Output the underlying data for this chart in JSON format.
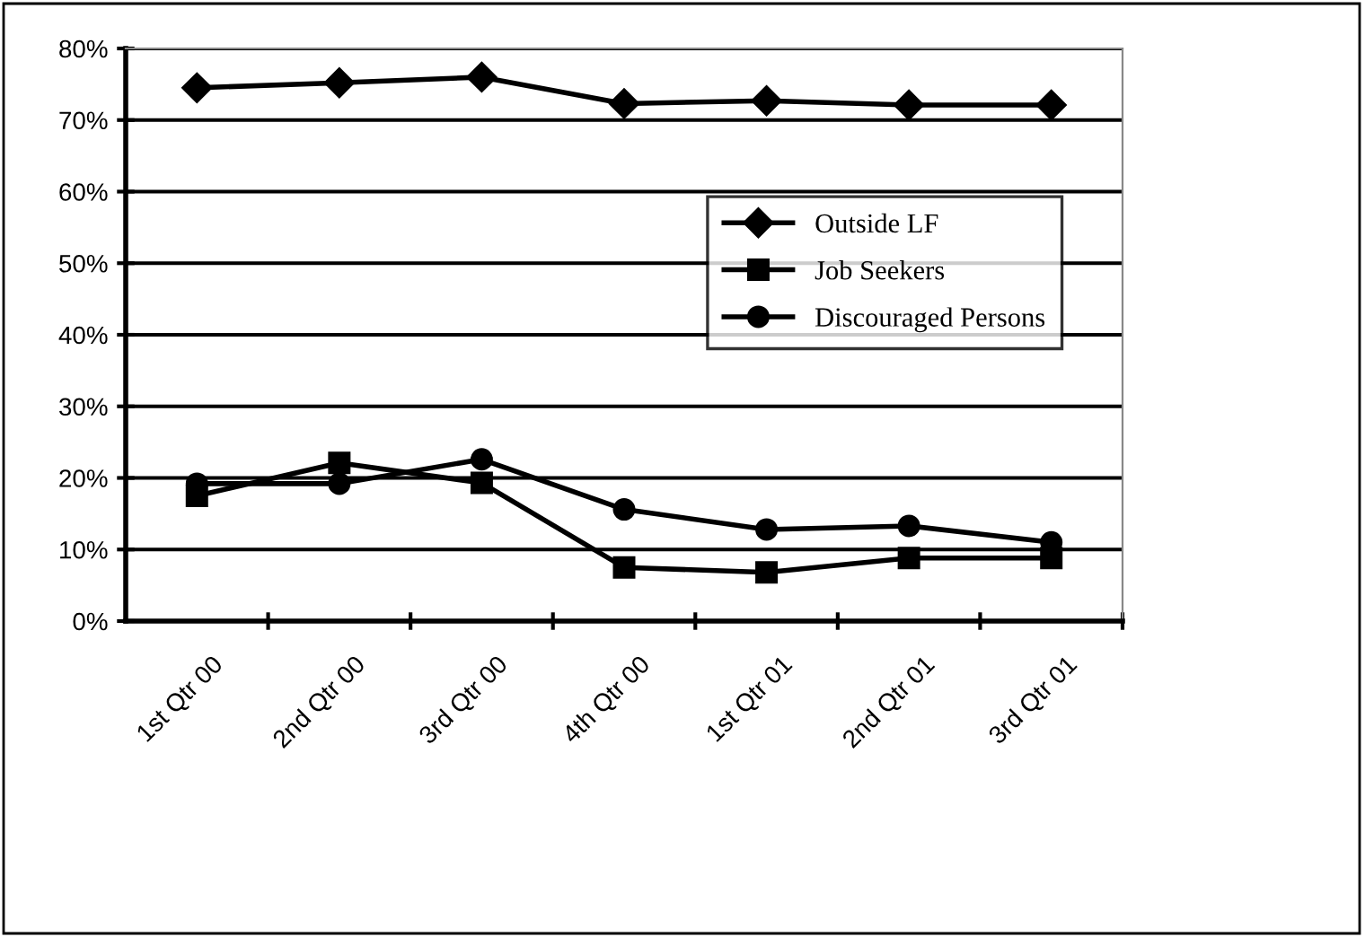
{
  "chart_data": {
    "type": "line",
    "categories": [
      "1st Qtr 00",
      "2nd Qtr 00",
      "3rd Qtr 00",
      "4th Qtr 00",
      "1st Qtr 01",
      "2nd Qtr 01",
      "3rd Qtr 01"
    ],
    "series": [
      {
        "name": "Outside LF",
        "color": "#000000",
        "marker": "diamond",
        "values": [
          74.5,
          75.2,
          76.0,
          72.3,
          72.7,
          72.1,
          72.1
        ]
      },
      {
        "name": "Job Seekers",
        "color": "#000000",
        "marker": "square",
        "values": [
          17.5,
          22.1,
          19.3,
          7.5,
          6.8,
          8.8,
          8.8
        ]
      },
      {
        "name": "Discouraged Persons",
        "color": "#000000",
        "marker": "circle",
        "values": [
          19.2,
          19.2,
          22.6,
          15.6,
          12.8,
          13.3,
          11.0
        ]
      }
    ],
    "ylim": [
      0,
      80
    ],
    "yticks": [
      {
        "value": 0,
        "label": "0%"
      },
      {
        "value": 10,
        "label": "10%"
      },
      {
        "value": 20,
        "label": "20%"
      },
      {
        "value": 30,
        "label": "30%"
      },
      {
        "value": 40,
        "label": "40%"
      },
      {
        "value": 50,
        "label": "50%"
      },
      {
        "value": 60,
        "label": "60%"
      },
      {
        "value": 70,
        "label": "70%"
      },
      {
        "value": 80,
        "label": "80%"
      }
    ],
    "grid": "y",
    "legend": "top right",
    "line_style": "solid"
  }
}
